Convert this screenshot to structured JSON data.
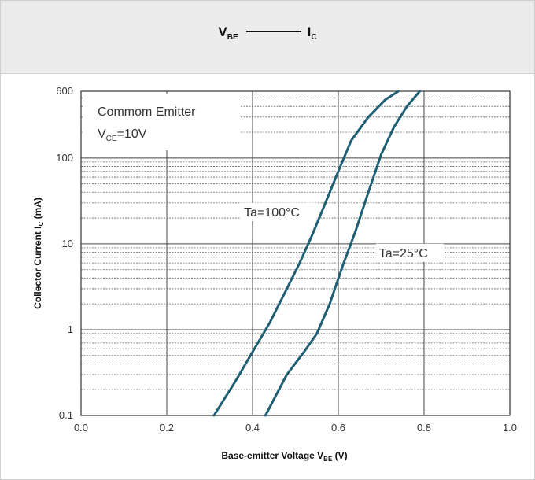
{
  "chart_data": {
    "type": "line",
    "title": {
      "main": "V",
      "main_sub": "BE",
      "second": "I",
      "second_sub": "C"
    },
    "xlabel": {
      "text": "Base-emitter Voltage  V",
      "sub": "BE",
      "unit": " (V)"
    },
    "ylabel": {
      "text": "Collector Current I",
      "sub": "C",
      "unit": " (mA)"
    },
    "xlim": [
      0,
      1.0
    ],
    "ylim": [
      0.1,
      600
    ],
    "yscale": "log",
    "x_ticks": [
      "0.0",
      "0.2",
      "0.4",
      "0.6",
      "0.8",
      "1.0"
    ],
    "y_ticks": [
      "0.1",
      "1",
      "10",
      "100",
      "600"
    ],
    "grid": true,
    "annotation": {
      "line1": "Commom Emitter",
      "line2_main": "V",
      "line2_sub": "CE",
      "line2_rest": "=10V"
    },
    "series": [
      {
        "name": "Ta=100°C",
        "color": "#1f5f74",
        "points": [
          [
            0.31,
            0.1
          ],
          [
            0.36,
            0.25
          ],
          [
            0.4,
            0.55
          ],
          [
            0.44,
            1.2
          ],
          [
            0.48,
            3.0
          ],
          [
            0.51,
            6.0
          ],
          [
            0.54,
            13
          ],
          [
            0.57,
            30
          ],
          [
            0.6,
            70
          ],
          [
            0.63,
            160
          ],
          [
            0.67,
            300
          ],
          [
            0.71,
            480
          ],
          [
            0.74,
            600
          ]
        ]
      },
      {
        "name": "Ta=25°C",
        "color": "#1f5f74",
        "points": [
          [
            0.43,
            0.1
          ],
          [
            0.48,
            0.3
          ],
          [
            0.52,
            0.55
          ],
          [
            0.55,
            0.9
          ],
          [
            0.58,
            2.0
          ],
          [
            0.61,
            5.5
          ],
          [
            0.64,
            14
          ],
          [
            0.67,
            40
          ],
          [
            0.7,
            110
          ],
          [
            0.73,
            230
          ],
          [
            0.76,
            400
          ],
          [
            0.79,
            600
          ]
        ]
      }
    ]
  }
}
